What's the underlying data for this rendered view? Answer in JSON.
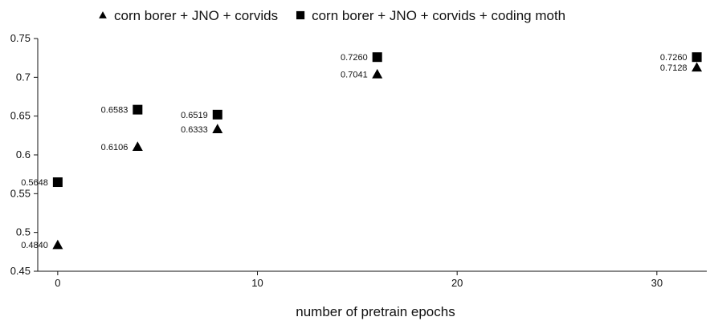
{
  "chart_data": {
    "type": "scatter",
    "title": "",
    "xlabel": "number of pretrain epochs",
    "ylabel": "",
    "xlim": [
      -1,
      32.5
    ],
    "ylim": [
      0.45,
      0.75
    ],
    "xticks": [
      0,
      10,
      20,
      30
    ],
    "yticks": [
      0.45,
      0.5,
      0.55,
      0.6,
      0.65,
      0.7,
      0.75
    ],
    "xtick_labels": [
      "0",
      "10",
      "20",
      "30"
    ],
    "ytick_labels": [
      "0.45",
      "0.5",
      "0.55",
      "0.6",
      "0.65",
      "0.7",
      "0.75"
    ],
    "grid": false,
    "legend_position": "top",
    "series": [
      {
        "name": "corn borer + JNO + corvids",
        "marker": "triangle",
        "color": "#000000",
        "x": [
          0,
          4,
          8,
          16,
          32
        ],
        "y": [
          0.484,
          0.6106,
          0.6333,
          0.7041,
          0.7128
        ],
        "labels": [
          "0.4840",
          "0.6106",
          "0.6333",
          "0.7041",
          "0.7128"
        ]
      },
      {
        "name": "corn borer + JNO + corvids + coding moth",
        "marker": "square",
        "color": "#000000",
        "x": [
          0,
          4,
          8,
          16,
          32
        ],
        "y": [
          0.5648,
          0.6583,
          0.6519,
          0.726,
          0.726
        ],
        "labels": [
          "0.5648",
          "0.6583",
          "0.6519",
          "0.7260",
          "0.7260"
        ]
      }
    ]
  }
}
